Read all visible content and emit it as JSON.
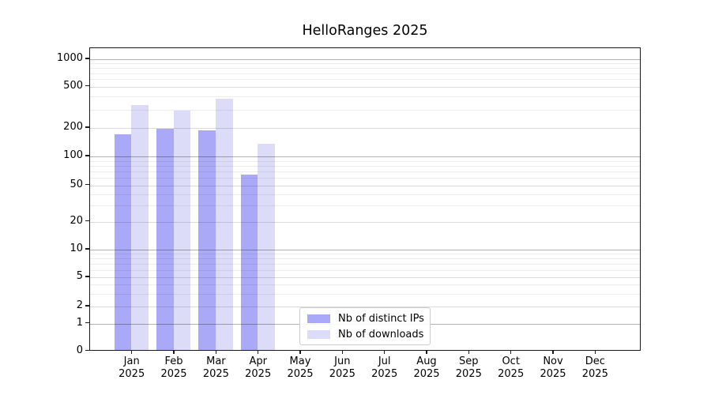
{
  "title": "HelloRanges 2025",
  "chart_data": {
    "type": "bar",
    "title": "HelloRanges 2025",
    "categories": [
      "Jan 2025",
      "Feb 2025",
      "Mar 2025",
      "Apr 2025",
      "May 2025",
      "Jun 2025",
      "Jul 2025",
      "Aug 2025",
      "Sep 2025",
      "Oct 2025",
      "Nov 2025",
      "Dec 2025"
    ],
    "series": [
      {
        "name": "Nb of distinct IPs",
        "color": "#a9a9f8",
        "values": [
          165,
          190,
          182,
          62,
          0,
          0,
          0,
          0,
          0,
          0,
          0,
          0
        ]
      },
      {
        "name": "Nb of downloads",
        "color": "#dcdcf9",
        "values": [
          320,
          285,
          370,
          130,
          0,
          0,
          0,
          0,
          0,
          0,
          0,
          0
        ]
      }
    ],
    "xlabel": "",
    "ylabel": "",
    "yscale": "symlog",
    "yticks": [
      0,
      1,
      2,
      5,
      10,
      20,
      50,
      100,
      200,
      500,
      1000
    ],
    "ytick_tiers": {
      "major": [
        1,
        10,
        100,
        1000
      ],
      "medium": [
        2,
        5,
        20,
        50,
        200,
        500
      ],
      "minor": [
        3,
        4,
        6,
        7,
        8,
        9,
        30,
        40,
        60,
        70,
        80,
        90,
        300,
        400,
        600,
        700,
        800,
        900
      ]
    },
    "ylim": [
      0,
      1300
    ],
    "grid": "both",
    "legend_position": "inside-lower-center"
  },
  "legend": {
    "items": [
      {
        "label": "Nb of distinct IPs",
        "color": "#a9a9f8"
      },
      {
        "label": "Nb of downloads",
        "color": "#dcdcf9"
      }
    ]
  },
  "colors": {
    "background": "#ffffff",
    "frame": "#1a1a1a",
    "text": "#000000",
    "grid_major": "rgba(0,0,0,0.30)",
    "grid_medium": "rgba(0,0,0,0.14)",
    "grid_minor": "rgba(0,0,0,0.07)"
  }
}
